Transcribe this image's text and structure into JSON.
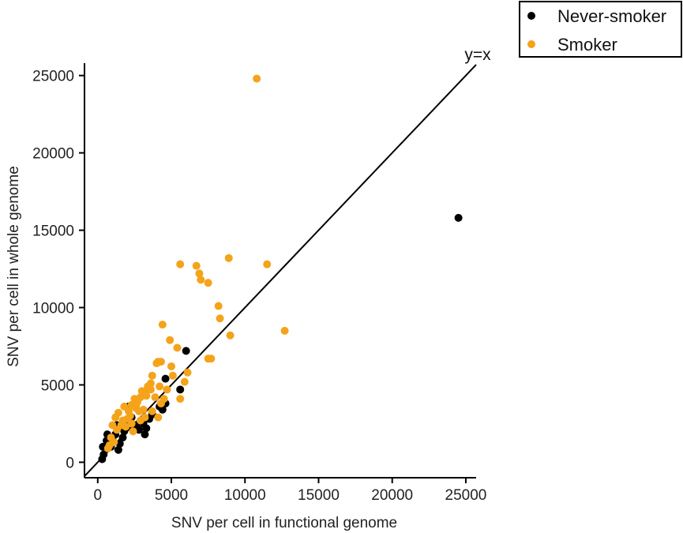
{
  "chart_data": {
    "type": "scatter",
    "title": "",
    "xlabel": "SNV per cell in functional genome",
    "ylabel": "SNV per cell in whole genome",
    "xlim": [
      -900,
      25700
    ],
    "ylim": [
      -1000,
      25800
    ],
    "xticks": [
      0,
      5000,
      10000,
      15000,
      20000,
      25000
    ],
    "yticks": [
      0,
      5000,
      10000,
      15000,
      20000,
      25000
    ],
    "grid": false,
    "legend_position": "top-right, outside plot",
    "reference_line": {
      "label": "y=x",
      "slope": 1,
      "intercept": 0
    },
    "series": [
      {
        "name": "Never-smoker",
        "color": "#000000",
        "points": [
          [
            300,
            200
          ],
          [
            400,
            500
          ],
          [
            350,
            1000
          ],
          [
            600,
            1400
          ],
          [
            650,
            1800
          ],
          [
            900,
            1000
          ],
          [
            1000,
            1500
          ],
          [
            1200,
            1800
          ],
          [
            1300,
            2400
          ],
          [
            1400,
            800
          ],
          [
            1500,
            1200
          ],
          [
            1700,
            1600
          ],
          [
            1800,
            2000
          ],
          [
            2000,
            2600
          ],
          [
            2100,
            3600
          ],
          [
            2300,
            2900
          ],
          [
            2400,
            2200
          ],
          [
            2600,
            2400
          ],
          [
            2800,
            2100
          ],
          [
            3100,
            2500
          ],
          [
            3200,
            1800
          ],
          [
            3300,
            2200
          ],
          [
            3500,
            2800
          ],
          [
            3700,
            3100
          ],
          [
            4200,
            3600
          ],
          [
            4400,
            3400
          ],
          [
            4600,
            3800
          ],
          [
            4600,
            5400
          ],
          [
            5600,
            4700
          ],
          [
            6000,
            7200
          ],
          [
            24500,
            15800
          ]
        ]
      },
      {
        "name": "Smoker",
        "color": "#F5A31A",
        "points": [
          [
            10800,
            24800
          ],
          [
            5600,
            12800
          ],
          [
            6700,
            12700
          ],
          [
            6900,
            12200
          ],
          [
            7000,
            11800
          ],
          [
            7500,
            11600
          ],
          [
            8900,
            13200
          ],
          [
            11500,
            12800
          ],
          [
            8200,
            10100
          ],
          [
            8300,
            9300
          ],
          [
            4400,
            8900
          ],
          [
            4900,
            7900
          ],
          [
            12700,
            8500
          ],
          [
            9000,
            8200
          ],
          [
            5400,
            7400
          ],
          [
            7500,
            6700
          ],
          [
            7700,
            6700
          ],
          [
            4100,
            6500
          ],
          [
            4000,
            6400
          ],
          [
            4300,
            6500
          ],
          [
            5000,
            6200
          ],
          [
            5100,
            5600
          ],
          [
            6100,
            5800
          ],
          [
            5900,
            5200
          ],
          [
            3700,
            5600
          ],
          [
            4200,
            4900
          ],
          [
            4700,
            4700
          ],
          [
            3600,
            5100
          ],
          [
            2900,
            4200
          ],
          [
            3000,
            4600
          ],
          [
            3300,
            4300
          ],
          [
            3400,
            4900
          ],
          [
            3600,
            4700
          ],
          [
            3200,
            4500
          ],
          [
            2700,
            3900
          ],
          [
            2500,
            4100
          ],
          [
            2300,
            3700
          ],
          [
            2100,
            3300
          ],
          [
            2600,
            3500
          ],
          [
            3100,
            3400
          ],
          [
            2800,
            3300
          ],
          [
            3900,
            4200
          ],
          [
            4300,
            3800
          ],
          [
            4500,
            4100
          ],
          [
            2000,
            2800
          ],
          [
            2200,
            3000
          ],
          [
            1700,
            2700
          ],
          [
            1600,
            2400
          ],
          [
            1400,
            3200
          ],
          [
            1200,
            2900
          ],
          [
            1000,
            2400
          ],
          [
            900,
            1600
          ],
          [
            800,
            1100
          ],
          [
            700,
            900
          ],
          [
            1100,
            1300
          ],
          [
            1300,
            2100
          ],
          [
            1900,
            2300
          ],
          [
            2300,
            2500
          ],
          [
            2400,
            2000
          ],
          [
            2900,
            2700
          ],
          [
            3200,
            2900
          ],
          [
            3700,
            3300
          ],
          [
            1800,
            3600
          ],
          [
            2600,
            3700
          ],
          [
            4100,
            2900
          ],
          [
            5600,
            4100
          ]
        ]
      }
    ]
  }
}
